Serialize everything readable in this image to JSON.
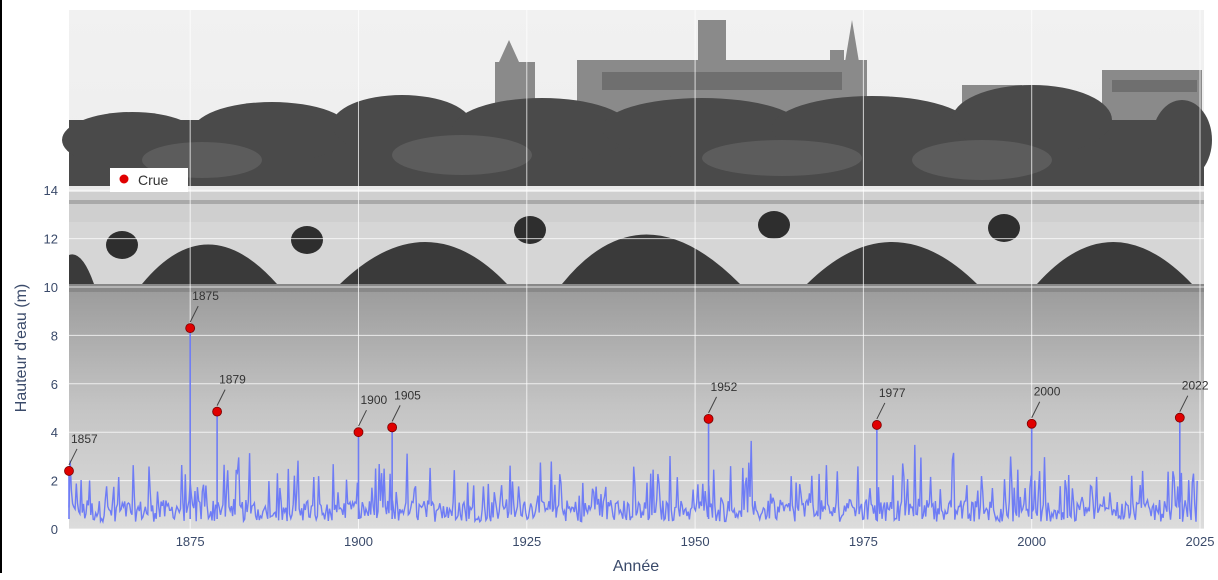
{
  "chart_data": {
    "type": "line",
    "title": "",
    "xlabel": "Année",
    "ylabel": "Hauteur d'eau (m)",
    "xlim": [
      1857,
      2025
    ],
    "ylim": [
      0,
      15.5
    ],
    "x_ticks": [
      1875,
      1900,
      1925,
      1950,
      1975,
      2000,
      2025
    ],
    "y_ticks": [
      0,
      2,
      4,
      6,
      8,
      10,
      12,
      14
    ],
    "grid": true,
    "legend": {
      "placement": "top-left",
      "entries": [
        {
          "label": "Crue",
          "color": "#e00000",
          "marker": "circle"
        }
      ]
    },
    "series": [
      {
        "name": "",
        "type": "line",
        "color": "#6e7cf5",
        "note_shape": "dense annual fluctuations, mostly between 0.2 and 3.5 m",
        "values_summary": {
          "min": 0.2,
          "typical_max": 3.5
        }
      },
      {
        "name": "Crue",
        "type": "scatter",
        "color": "#e00000",
        "points": [
          {
            "x": 1857,
            "y": 2.4,
            "label": "1857"
          },
          {
            "x": 1875,
            "y": 8.3,
            "label": "1875"
          },
          {
            "x": 1879,
            "y": 4.85,
            "label": "1879"
          },
          {
            "x": 1900,
            "y": 4.0,
            "label": "1900"
          },
          {
            "x": 1905,
            "y": 4.2,
            "label": "1905"
          },
          {
            "x": 1952,
            "y": 4.55,
            "label": "1952"
          },
          {
            "x": 1977,
            "y": 4.3,
            "label": "1977"
          },
          {
            "x": 2000,
            "y": 4.35,
            "label": "2000"
          },
          {
            "x": 2022,
            "y": 4.6,
            "label": "2022"
          }
        ]
      }
    ]
  }
}
